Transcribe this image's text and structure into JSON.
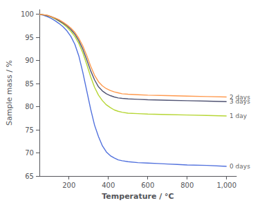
{
  "chart_data": {
    "type": "line",
    "xlabel": "Temperature / °C",
    "ylabel": "Sample mass / %",
    "xlim": [
      50,
      1050
    ],
    "ylim": [
      65,
      101
    ],
    "xticks": [
      200,
      400,
      600,
      800,
      1000
    ],
    "yticks": [
      65,
      70,
      75,
      80,
      85,
      90,
      95,
      100
    ],
    "grid": false,
    "series": [
      {
        "x": [
          50,
          70,
          90,
          110,
          130,
          150,
          170,
          190,
          210,
          230,
          250,
          270,
          290,
          310,
          330,
          350,
          370,
          390,
          410,
          430,
          450,
          470,
          500,
          550,
          600,
          650,
          700,
          750,
          800,
          900,
          1000
        ],
        "values": [
          100.0,
          99.8,
          99.5,
          99.1,
          98.6,
          98.0,
          97.3,
          96.4,
          95.2,
          93.5,
          91.0,
          87.5,
          83.5,
          79.5,
          76.0,
          73.5,
          71.5,
          70.2,
          69.4,
          68.9,
          68.5,
          68.3,
          68.1,
          67.9,
          67.8,
          67.7,
          67.6,
          67.5,
          67.4,
          67.3,
          67.1
        ]
      },
      {
        "x": [
          50,
          70,
          90,
          110,
          130,
          150,
          170,
          190,
          210,
          230,
          250,
          270,
          290,
          310,
          330,
          350,
          370,
          390,
          410,
          430,
          450,
          470,
          500,
          550,
          600,
          700,
          800,
          900,
          1000
        ],
        "values": [
          100.0,
          99.9,
          99.7,
          99.4,
          99.0,
          98.5,
          97.9,
          97.2,
          96.3,
          95.2,
          93.7,
          91.7,
          89.2,
          86.5,
          84.2,
          82.5,
          81.3,
          80.4,
          79.8,
          79.3,
          79.0,
          78.8,
          78.6,
          78.5,
          78.4,
          78.3,
          78.2,
          78.1,
          78.0
        ]
      },
      {
        "x": [
          50,
          70,
          90,
          110,
          130,
          150,
          170,
          190,
          210,
          230,
          250,
          270,
          290,
          310,
          330,
          350,
          370,
          390,
          410,
          430,
          450,
          470,
          500,
          550,
          600,
          700,
          800,
          900,
          1000
        ],
        "values": [
          100.0,
          99.9,
          99.7,
          99.5,
          99.1,
          98.6,
          98.1,
          97.5,
          96.7,
          95.7,
          94.3,
          92.5,
          90.2,
          87.8,
          85.8,
          84.3,
          83.4,
          82.8,
          82.4,
          82.1,
          81.9,
          81.8,
          81.7,
          81.6,
          81.5,
          81.4,
          81.3,
          81.2,
          81.1
        ]
      },
      {
        "x": [
          50,
          70,
          90,
          110,
          130,
          150,
          170,
          190,
          210,
          230,
          250,
          270,
          290,
          310,
          330,
          350,
          370,
          390,
          410,
          430,
          450,
          470,
          500,
          550,
          600,
          700,
          800,
          900,
          1000
        ],
        "values": [
          100.0,
          99.9,
          99.8,
          99.5,
          99.2,
          98.8,
          98.3,
          97.7,
          97.0,
          96.1,
          94.8,
          93.2,
          91.1,
          88.8,
          86.8,
          85.4,
          84.5,
          83.9,
          83.5,
          83.2,
          83.0,
          82.8,
          82.7,
          82.6,
          82.5,
          82.4,
          82.3,
          82.2,
          82.1
        ]
      }
    ],
    "annotations": [
      {
        "label": "2 days",
        "x": 1008,
        "y": 82.1
      },
      {
        "label": "3 days",
        "x": 1008,
        "y": 81.1
      },
      {
        "label": "1 day",
        "x": 1008,
        "y": 78.0
      },
      {
        "label": "0 days",
        "x": 1008,
        "y": 67.1
      }
    ]
  }
}
